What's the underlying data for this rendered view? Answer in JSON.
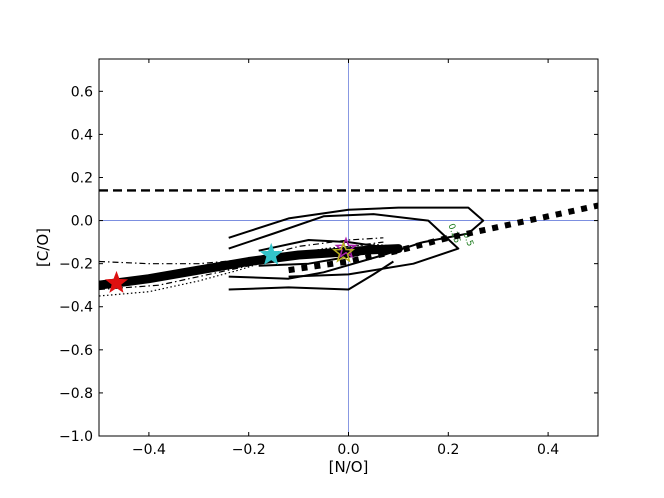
{
  "chart_data": {
    "type": "line",
    "title": "",
    "xlabel": "[N/O]",
    "ylabel": "[C/O]",
    "xlim": [
      -0.5,
      0.5
    ],
    "ylim": [
      -1.0,
      0.75
    ],
    "xticks": [
      -0.4,
      -0.2,
      0.0,
      0.2,
      0.4
    ],
    "xtick_labels": [
      "−0.4",
      "−0.2",
      "0.0",
      "0.2",
      "0.4"
    ],
    "yticks": [
      -1.0,
      -0.8,
      -0.6,
      -0.4,
      -0.2,
      0.0,
      0.2,
      0.4,
      0.6
    ],
    "ytick_labels": [
      "−1.0",
      "−0.8",
      "−0.6",
      "−0.4",
      "−0.2",
      "0.0",
      "0.2",
      "0.4",
      "0.6"
    ],
    "grid": false,
    "reference_lines": {
      "vertical_x": 0.0,
      "horizontal_y": 0.0,
      "color": "#6a7fdb"
    },
    "hlines": [
      {
        "y": 0.14,
        "style": "dashed",
        "color": "#000000"
      }
    ],
    "series": [
      {
        "style": "thick-solid",
        "color": "#000000",
        "points": [
          [
            -0.5,
            -0.3
          ],
          [
            -0.4,
            -0.27
          ],
          [
            -0.3,
            -0.23
          ],
          [
            -0.2,
            -0.19
          ],
          [
            -0.1,
            -0.16
          ],
          [
            0.0,
            -0.145
          ],
          [
            0.05,
            -0.135
          ],
          [
            0.1,
            -0.13
          ]
        ]
      },
      {
        "style": "thick-dotted",
        "color": "#000000",
        "points": [
          [
            -0.12,
            -0.23
          ],
          [
            0.0,
            -0.19
          ],
          [
            0.1,
            -0.14
          ],
          [
            0.2,
            -0.08
          ],
          [
            0.3,
            -0.03
          ],
          [
            0.4,
            0.02
          ],
          [
            0.5,
            0.07
          ]
        ]
      },
      {
        "style": "thin-dotted",
        "color": "#000000",
        "points": [
          [
            -0.5,
            -0.35
          ],
          [
            -0.4,
            -0.33
          ],
          [
            -0.3,
            -0.28
          ],
          [
            -0.22,
            -0.23
          ],
          [
            -0.15,
            -0.18
          ],
          [
            -0.05,
            -0.13
          ],
          [
            0.05,
            -0.11
          ],
          [
            0.1,
            -0.12
          ]
        ]
      },
      {
        "style": "dashdot",
        "color": "#000000",
        "points": [
          [
            -0.5,
            -0.32
          ],
          [
            -0.38,
            -0.3
          ],
          [
            -0.3,
            -0.26
          ],
          [
            -0.2,
            -0.21
          ],
          [
            -0.1,
            -0.16
          ],
          [
            0.0,
            -0.12
          ],
          [
            0.07,
            -0.1
          ]
        ]
      },
      {
        "style": "dashdot",
        "color": "#000000",
        "points": [
          [
            -0.5,
            -0.19
          ],
          [
            -0.4,
            -0.2
          ],
          [
            -0.3,
            -0.2
          ],
          [
            -0.2,
            -0.18
          ],
          [
            -0.1,
            -0.12
          ],
          [
            0.0,
            -0.09
          ],
          [
            0.07,
            -0.08
          ]
        ]
      }
    ],
    "contours": [
      {
        "label": "0.25",
        "points": [
          [
            -0.24,
            -0.08
          ],
          [
            -0.2,
            -0.05
          ],
          [
            -0.12,
            0.01
          ],
          [
            0.0,
            0.05
          ],
          [
            0.1,
            0.06
          ],
          [
            0.24,
            0.06
          ],
          [
            0.27,
            0.0
          ],
          [
            0.24,
            -0.06
          ],
          [
            0.15,
            -0.1
          ],
          [
            0.07,
            -0.16
          ],
          [
            -0.05,
            -0.24
          ],
          [
            -0.12,
            -0.27
          ],
          [
            -0.24,
            -0.26
          ]
        ]
      },
      {
        "label": "0.5",
        "points": [
          [
            -0.24,
            -0.13
          ],
          [
            -0.15,
            -0.06
          ],
          [
            -0.05,
            0.02
          ],
          [
            0.05,
            0.03
          ],
          [
            0.16,
            0.0
          ],
          [
            0.22,
            -0.13
          ],
          [
            0.13,
            -0.2
          ],
          [
            0.0,
            -0.25
          ],
          [
            -0.12,
            -0.26
          ]
        ]
      },
      {
        "label": "",
        "points": [
          [
            -0.18,
            -0.14
          ],
          [
            -0.08,
            -0.09
          ],
          [
            0.0,
            -0.1
          ],
          [
            0.06,
            -0.12
          ],
          [
            0.02,
            -0.16
          ],
          [
            -0.08,
            -0.2
          ],
          [
            -0.18,
            -0.21
          ]
        ]
      },
      {
        "label": "",
        "points": [
          [
            -0.24,
            -0.32
          ],
          [
            -0.12,
            -0.31
          ],
          [
            0.0,
            -0.32
          ],
          [
            0.05,
            -0.25
          ],
          [
            0.09,
            -0.19
          ]
        ]
      }
    ],
    "markers": [
      {
        "shape": "star",
        "x": -0.465,
        "y": -0.29,
        "color": "#dd1111"
      },
      {
        "shape": "star",
        "x": -0.155,
        "y": -0.16,
        "color": "#33c3c9"
      },
      {
        "shape": "star",
        "x": -0.005,
        "y": -0.13,
        "color": "#aa22aa"
      },
      {
        "shape": "star",
        "x": -0.01,
        "y": -0.15,
        "color": "#b8b020"
      }
    ]
  }
}
